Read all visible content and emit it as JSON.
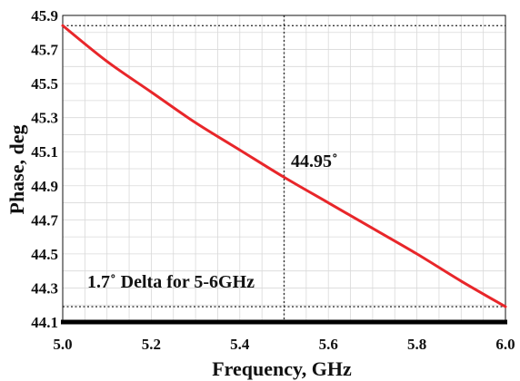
{
  "chart_data": {
    "type": "line",
    "xlabel": "Frequency, GHz",
    "ylabel": "Phase, deg",
    "xlim": [
      5.0,
      6.0
    ],
    "ylim": [
      44.1,
      45.9
    ],
    "x_ticks": [
      5.0,
      5.2,
      5.4,
      5.6,
      5.8,
      6.0
    ],
    "x_tick_labels": [
      "5.0",
      "5.2",
      "5.4",
      "5.6",
      "5.8",
      "6.0"
    ],
    "y_ticks": [
      44.1,
      44.3,
      44.5,
      44.7,
      44.9,
      45.1,
      45.3,
      45.5,
      45.7,
      45.9
    ],
    "y_tick_labels": [
      "44.1",
      "44.3",
      "44.5",
      "44.7",
      "44.9",
      "45.1",
      "45.3",
      "45.5",
      "45.7",
      "45.9"
    ],
    "grid": true,
    "series": [
      {
        "color": "#e8262a",
        "x": [
          5.0,
          5.1,
          5.2,
          5.3,
          5.4,
          5.5,
          5.6,
          5.7,
          5.8,
          5.9,
          6.0
        ],
        "values": [
          45.84,
          45.63,
          45.45,
          45.27,
          45.11,
          44.95,
          44.8,
          44.65,
          44.5,
          44.34,
          44.19
        ]
      }
    ],
    "reference_lines": {
      "vertical_x": 5.5,
      "horizontal_y": [
        45.84,
        44.19
      ]
    },
    "annotations": {
      "point_value": "44.95˚",
      "delta_text": "1.7˚ Delta for 5-6GHz"
    }
  }
}
